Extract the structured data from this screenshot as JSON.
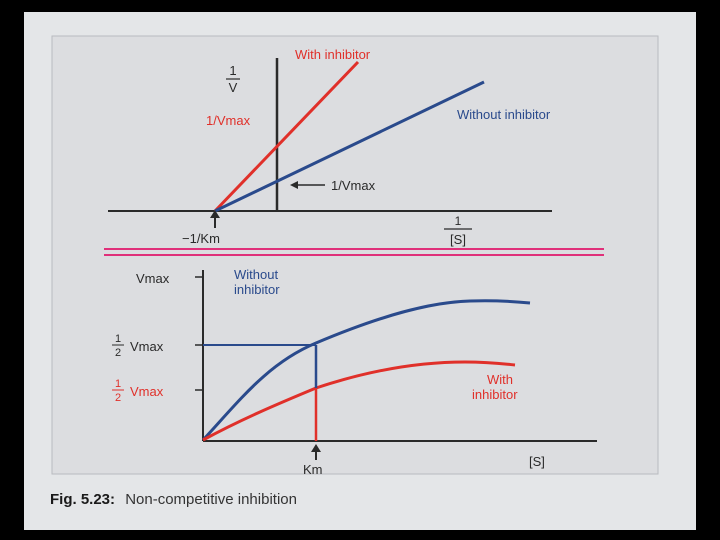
{
  "colors": {
    "paper": "#e4e6e8",
    "inner": "#dcdde0",
    "axis": "#2a2a2a",
    "blue": "#2a4a8c",
    "red": "#e0302a",
    "pink": "#e0307a",
    "caption_label": "#1a1a1a"
  },
  "top_plot": {
    "y_axis_label_num": "1",
    "y_axis_label_den": "V",
    "x_axis_label_num": "1",
    "x_axis_label_den": "[S]",
    "with_inhibitor_label": "With inhibitor",
    "without_inhibitor_label": "Without inhibitor",
    "red_intercept_label": "1/Vmax",
    "blue_intercept_label": "1/Vmax",
    "x_intercept_label": "−1/Km"
  },
  "bottom_plot": {
    "vmax_label": "Vmax",
    "half_vmax_blue_num": "1",
    "half_vmax_blue_den": "2",
    "half_vmax_blue_text": "Vmax",
    "half_vmax_red_num": "1",
    "half_vmax_red_den": "2",
    "half_vmax_red_text": "Vmax",
    "without_inhibitor_line1": "Without",
    "without_inhibitor_line2": "inhibitor",
    "with_inhibitor_line1": "With",
    "with_inhibitor_line2": "inhibitor",
    "km_label": "Km",
    "x_axis_label": "[S]"
  },
  "caption": {
    "label": "Fig. 5.23:",
    "text": "Non-competitive inhibition"
  }
}
